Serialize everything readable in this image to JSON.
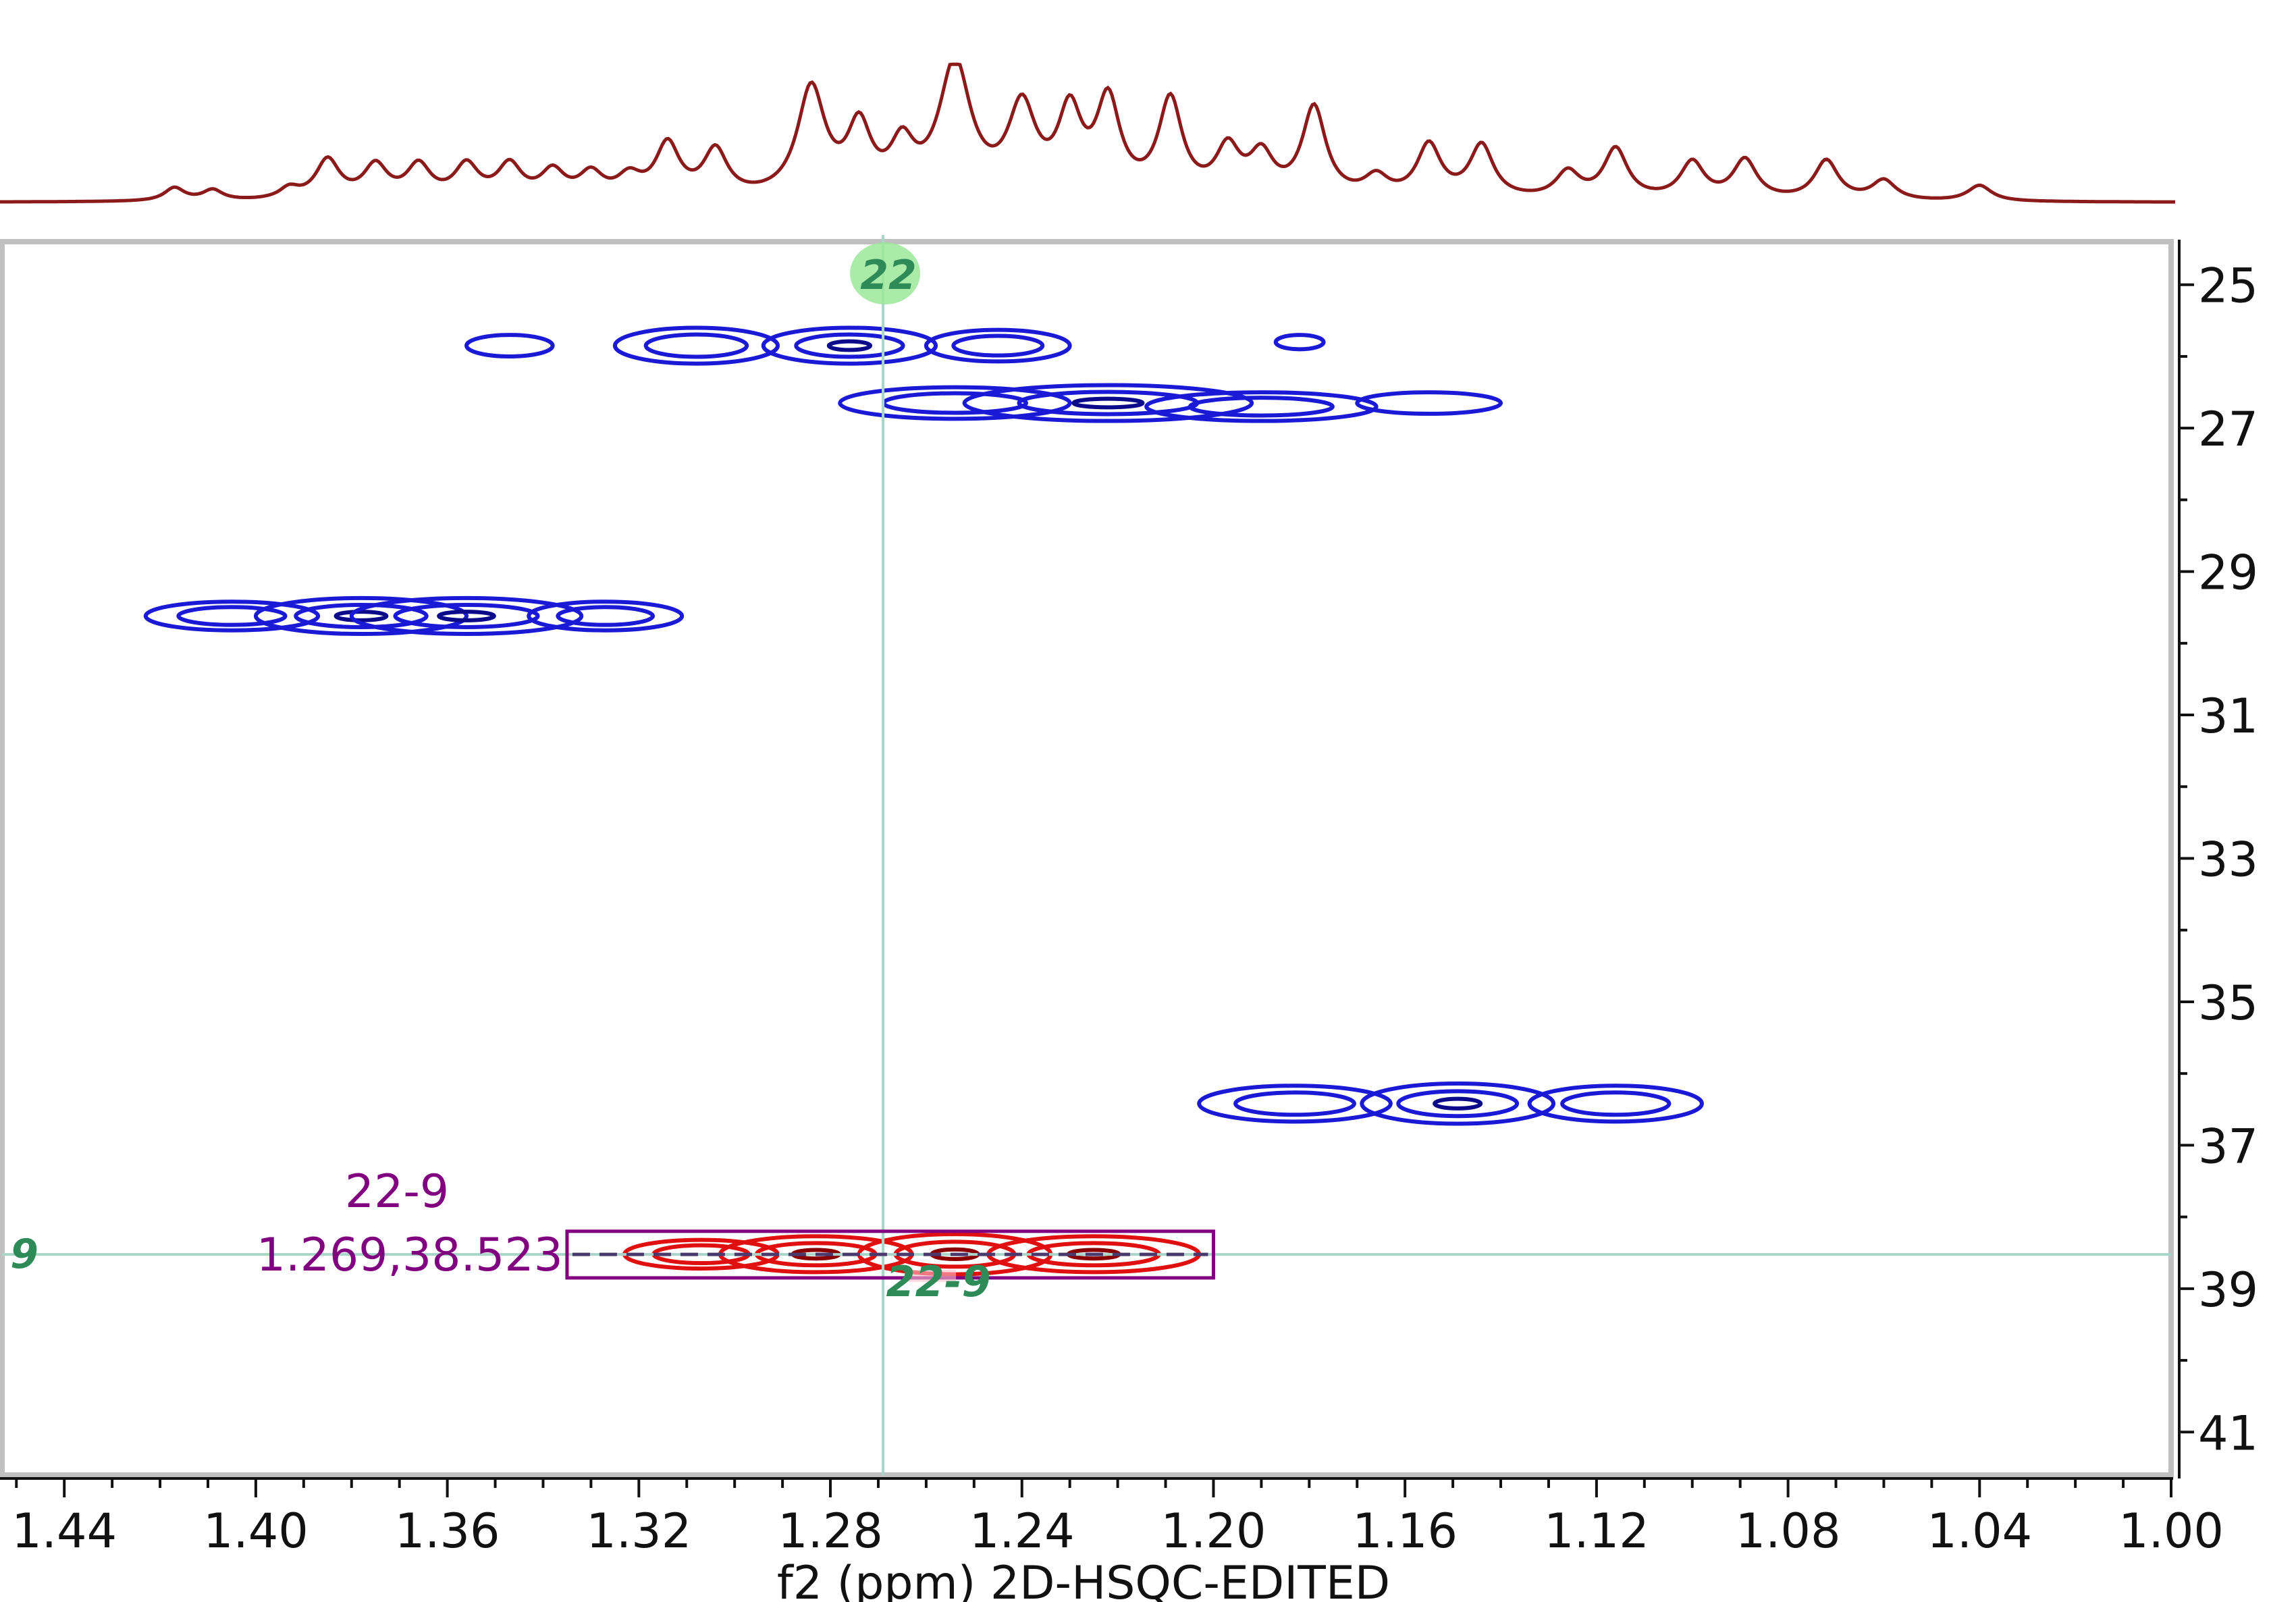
{
  "chart_data": {
    "type": "heatmap",
    "subtype": "2D NMR contour plot (HSQC) with 1D projection",
    "xlabel": "f2 (ppm) 2D-HSQC-EDITED",
    "ylabel": "",
    "x_axis": {
      "reversed": true,
      "range": [
        1.453,
        1.0
      ],
      "ticks": [
        1.44,
        1.4,
        1.36,
        1.32,
        1.28,
        1.24,
        1.2,
        1.16,
        1.12,
        1.08,
        1.04,
        1.0
      ]
    },
    "y_axis": {
      "reversed": true,
      "position": "right",
      "range": [
        24.4,
        41.6
      ],
      "ticks": [
        25,
        27,
        29,
        31,
        33,
        35,
        37,
        39,
        41
      ]
    },
    "grid": false,
    "colors": {
      "positive_contours": "#1a1ad6",
      "positive_core": "#0a0a8a",
      "negative_contours": "#e01010",
      "negative_core": "#8b0000",
      "projection": "#8b1a1a",
      "frame": "#c0c0c0",
      "crosshair": "#a8d5c8",
      "annotation": "#800080",
      "label": "#2e8b57",
      "label_bubble": "#9be79b"
    },
    "contour_peaks": [
      {
        "phase": "positive",
        "x": 1.347,
        "y": 25.85,
        "wx": 0.009,
        "wy": 0.15,
        "levels": 1
      },
      {
        "phase": "positive",
        "x": 1.308,
        "y": 25.85,
        "wx": 0.017,
        "wy": 0.25,
        "levels": 2
      },
      {
        "phase": "positive",
        "x": 1.276,
        "y": 25.85,
        "wx": 0.018,
        "wy": 0.25,
        "levels": 3
      },
      {
        "phase": "positive",
        "x": 1.245,
        "y": 25.85,
        "wx": 0.015,
        "wy": 0.22,
        "levels": 2
      },
      {
        "phase": "positive",
        "x": 1.182,
        "y": 25.8,
        "wx": 0.005,
        "wy": 0.1,
        "levels": 1
      },
      {
        "phase": "positive",
        "x": 1.254,
        "y": 26.65,
        "wx": 0.024,
        "wy": 0.22,
        "levels": 2
      },
      {
        "phase": "positive",
        "x": 1.222,
        "y": 26.65,
        "wx": 0.03,
        "wy": 0.25,
        "levels": 3
      },
      {
        "phase": "positive",
        "x": 1.19,
        "y": 26.7,
        "wx": 0.024,
        "wy": 0.2,
        "levels": 2
      },
      {
        "phase": "positive",
        "x": 1.155,
        "y": 26.65,
        "wx": 0.015,
        "wy": 0.15,
        "levels": 1
      },
      {
        "phase": "positive",
        "x": 1.405,
        "y": 29.62,
        "wx": 0.018,
        "wy": 0.2,
        "levels": 2
      },
      {
        "phase": "positive",
        "x": 1.378,
        "y": 29.62,
        "wx": 0.022,
        "wy": 0.25,
        "levels": 3
      },
      {
        "phase": "positive",
        "x": 1.356,
        "y": 29.62,
        "wx": 0.024,
        "wy": 0.25,
        "levels": 3
      },
      {
        "phase": "positive",
        "x": 1.327,
        "y": 29.62,
        "wx": 0.016,
        "wy": 0.2,
        "levels": 2
      },
      {
        "phase": "positive",
        "x": 1.183,
        "y": 36.42,
        "wx": 0.02,
        "wy": 0.25,
        "levels": 2
      },
      {
        "phase": "positive",
        "x": 1.149,
        "y": 36.42,
        "wx": 0.02,
        "wy": 0.28,
        "levels": 3
      },
      {
        "phase": "positive",
        "x": 1.116,
        "y": 36.42,
        "wx": 0.018,
        "wy": 0.25,
        "levels": 2
      },
      {
        "phase": "negative",
        "x": 1.307,
        "y": 38.52,
        "wx": 0.016,
        "wy": 0.2,
        "levels": 2
      },
      {
        "phase": "negative",
        "x": 1.283,
        "y": 38.52,
        "wx": 0.02,
        "wy": 0.25,
        "levels": 3
      },
      {
        "phase": "negative",
        "x": 1.254,
        "y": 38.52,
        "wx": 0.02,
        "wy": 0.28,
        "levels": 3
      },
      {
        "phase": "negative",
        "x": 1.225,
        "y": 38.52,
        "wx": 0.022,
        "wy": 0.25,
        "levels": 3
      }
    ],
    "projection_f2": {
      "peaks": [
        {
          "x": 1.417,
          "h": 0.1,
          "w": 0.0025
        },
        {
          "x": 1.409,
          "h": 0.08,
          "w": 0.0025
        },
        {
          "x": 1.393,
          "h": 0.08,
          "w": 0.0025
        },
        {
          "x": 1.385,
          "h": 0.3,
          "w": 0.003
        },
        {
          "x": 1.375,
          "h": 0.25,
          "w": 0.003
        },
        {
          "x": 1.366,
          "h": 0.25,
          "w": 0.003
        },
        {
          "x": 1.356,
          "h": 0.25,
          "w": 0.003
        },
        {
          "x": 1.347,
          "h": 0.25,
          "w": 0.003
        },
        {
          "x": 1.338,
          "h": 0.2,
          "w": 0.003
        },
        {
          "x": 1.33,
          "h": 0.18,
          "w": 0.003
        },
        {
          "x": 1.322,
          "h": 0.15,
          "w": 0.003
        },
        {
          "x": 1.314,
          "h": 0.4,
          "w": 0.003
        },
        {
          "x": 1.304,
          "h": 0.35,
          "w": 0.003
        },
        {
          "x": 1.284,
          "h": 0.82,
          "w": 0.0035
        },
        {
          "x": 1.274,
          "h": 0.5,
          "w": 0.003
        },
        {
          "x": 1.265,
          "h": 0.35,
          "w": 0.003
        },
        {
          "x": 1.254,
          "h": 1.0,
          "w": 0.004
        },
        {
          "x": 1.24,
          "h": 0.65,
          "w": 0.0035
        },
        {
          "x": 1.23,
          "h": 0.6,
          "w": 0.003
        },
        {
          "x": 1.222,
          "h": 0.7,
          "w": 0.003
        },
        {
          "x": 1.209,
          "h": 0.72,
          "w": 0.003
        },
        {
          "x": 1.197,
          "h": 0.35,
          "w": 0.003
        },
        {
          "x": 1.19,
          "h": 0.3,
          "w": 0.003
        },
        {
          "x": 1.179,
          "h": 0.68,
          "w": 0.003
        },
        {
          "x": 1.166,
          "h": 0.15,
          "w": 0.003
        },
        {
          "x": 1.155,
          "h": 0.4,
          "w": 0.003
        },
        {
          "x": 1.144,
          "h": 0.4,
          "w": 0.003
        },
        {
          "x": 1.126,
          "h": 0.2,
          "w": 0.003
        },
        {
          "x": 1.116,
          "h": 0.38,
          "w": 0.003
        },
        {
          "x": 1.1,
          "h": 0.28,
          "w": 0.003
        },
        {
          "x": 1.089,
          "h": 0.3,
          "w": 0.003
        },
        {
          "x": 1.072,
          "h": 0.3,
          "w": 0.003
        },
        {
          "x": 1.06,
          "h": 0.15,
          "w": 0.003
        },
        {
          "x": 1.04,
          "h": 0.12,
          "w": 0.003
        }
      ]
    },
    "crosshair": {
      "x": 1.269,
      "y": 38.523
    },
    "labels": {
      "f2_marker": "22",
      "f1_marker": "9",
      "peak_label": "22-9",
      "annotation_name": "22-9",
      "annotation_coords": "1.269,38.523"
    },
    "integration_box": {
      "x_from": 1.335,
      "x_to": 1.2,
      "y_from": 38.2,
      "y_to": 38.85
    }
  }
}
